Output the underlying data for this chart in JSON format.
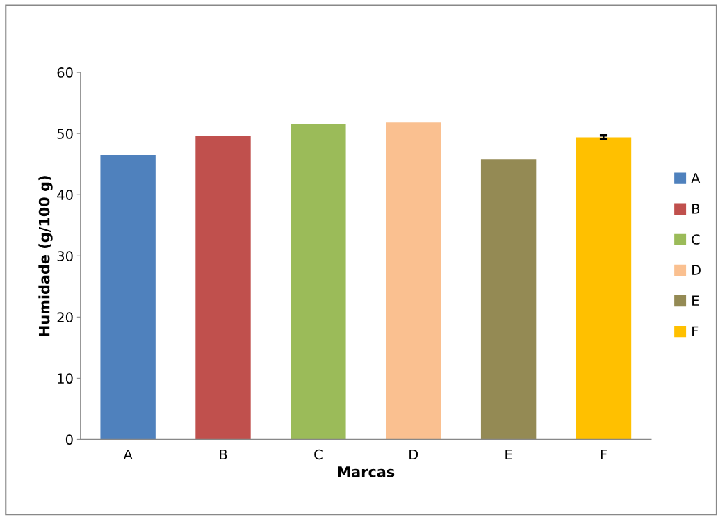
{
  "chart_data": {
    "type": "bar",
    "xlabel": "Marcas",
    "ylabel": "Humidade (g/100 g)",
    "categories": [
      "A",
      "B",
      "C",
      "D",
      "E",
      "F"
    ],
    "series": [
      {
        "name": "A",
        "color": "#4f81bd",
        "values": [
          46.5,
          null,
          null,
          null,
          null,
          null
        ]
      },
      {
        "name": "B",
        "color": "#c0504d",
        "values": [
          null,
          49.6,
          null,
          null,
          null,
          null
        ]
      },
      {
        "name": "C",
        "color": "#9bbb59",
        "values": [
          null,
          null,
          51.6,
          null,
          null,
          null
        ]
      },
      {
        "name": "D",
        "color": "#fac090",
        "values": [
          null,
          null,
          null,
          51.8,
          null,
          null
        ]
      },
      {
        "name": "E",
        "color": "#948a54",
        "values": [
          null,
          null,
          null,
          null,
          45.8,
          null
        ]
      },
      {
        "name": "F",
        "color": "#ffc000",
        "values": [
          null,
          null,
          null,
          null,
          null,
          49.4
        ],
        "errors": [
          null,
          null,
          null,
          null,
          null,
          0.3
        ]
      }
    ],
    "ylim": [
      0,
      60
    ],
    "yticks": [
      0,
      10,
      20,
      30,
      40,
      50,
      60
    ],
    "grid": false,
    "legend": "right"
  }
}
